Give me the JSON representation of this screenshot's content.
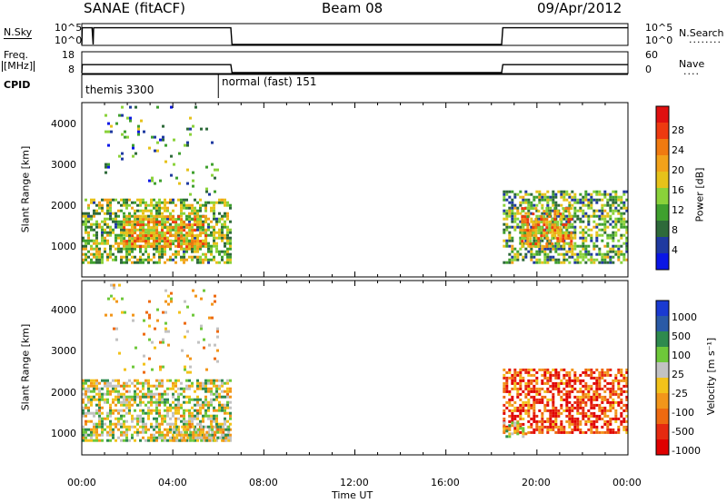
{
  "header": {
    "station": "SANAE (fitACF)",
    "beam": "Beam 08",
    "date": "09/Apr/2012"
  },
  "strip_labels": {
    "nsky": "N.Sky",
    "freq_line1": "Freq.",
    "freq_line2": "[MHz]",
    "cpid": "CPID",
    "nsearch": "N.Search",
    "nsearch_dots": "········",
    "nave": "Nave",
    "nave_dots": "····",
    "nsky_ticks": [
      "10^5",
      "10^0"
    ],
    "nsearch_ticks": [
      "10^5",
      "10^0"
    ],
    "freq_ticks": [
      "18",
      "8"
    ],
    "nave_ticks": [
      "60",
      "0"
    ]
  },
  "cpid": {
    "segments": [
      {
        "label": "themis 3300",
        "start_hour": 0.0
      },
      {
        "label": "normal (fast) 151",
        "start_hour": 6.0
      }
    ]
  },
  "axes": {
    "xlabel": "Time UT",
    "x_ticks": [
      "00:00",
      "04:00",
      "08:00",
      "12:00",
      "16:00",
      "20:00",
      "00:00"
    ],
    "ylabel": "Slant Range [km]",
    "y_ticks": [
      "4000",
      "3000",
      "2000",
      "1000"
    ]
  },
  "colorbars": {
    "power": {
      "label": "Power [dB]",
      "ticks": [
        "28",
        "24",
        "20",
        "16",
        "12",
        "8",
        "4"
      ],
      "colors": [
        "#0a16e6",
        "#1f3aa0",
        "#2e6a3a",
        "#3fa02e",
        "#8ad23a",
        "#e6c21a",
        "#f2a21a",
        "#f07a10",
        "#ee3a10",
        "#e01010"
      ]
    },
    "velocity": {
      "label": "Velocity [m s⁻¹]",
      "ticks": [
        "1000",
        "500",
        "100",
        "25",
        "-25",
        "-100",
        "-500",
        "-1000"
      ],
      "colors": [
        "#1a3ad2",
        "#2a5aa6",
        "#2e8a4e",
        "#6ec83a",
        "#c2c2c2",
        "#f2c21a",
        "#f2961a",
        "#ee6a10",
        "#e62a10",
        "#e00000"
      ]
    }
  },
  "chart_data": [
    {
      "type": "line",
      "title": "N.Sky / N.Search",
      "x_range_hours": [
        0,
        24
      ],
      "series": [
        {
          "name": "N.Sky",
          "scale": "log",
          "range": [
            1,
            100000
          ],
          "points": [
            [
              0.0,
              1
            ],
            [
              0.02,
              40000
            ],
            [
              0.45,
              40000
            ],
            [
              0.5,
              1
            ],
            [
              0.52,
              40000
            ],
            [
              6.55,
              40000
            ],
            [
              6.6,
              1
            ],
            [
              18.45,
              1
            ],
            [
              18.5,
              40000
            ],
            [
              23.98,
              40000
            ]
          ]
        },
        {
          "name": "N.Search",
          "scale": "log",
          "range": [
            1,
            100000
          ],
          "points": [
            [
              0.0,
              1
            ],
            [
              23.98,
              1
            ]
          ]
        }
      ]
    },
    {
      "type": "line",
      "title": "Freq. [MHz] / Nave",
      "x_range_hours": [
        0,
        24
      ],
      "series": [
        {
          "name": "Freq. [MHz]",
          "range": [
            8,
            18
          ],
          "points": [
            [
              0.0,
              8
            ],
            [
              0.02,
              12.2
            ],
            [
              6.55,
              12.2
            ],
            [
              6.6,
              8
            ],
            [
              18.45,
              8
            ],
            [
              18.5,
              12.2
            ],
            [
              23.98,
              12.2
            ]
          ]
        },
        {
          "name": "Nave",
          "range": [
            0,
            60
          ],
          "points": [
            [
              0.0,
              0
            ],
            [
              23.98,
              0
            ]
          ]
        }
      ]
    },
    {
      "type": "heatmap",
      "title": "Power [dB]",
      "x_range_hours": [
        0,
        24
      ],
      "y_range_km": [
        200,
        4500
      ],
      "value_range": [
        0,
        32
      ],
      "clusters": [
        {
          "t": [
            0.0,
            6.5
          ],
          "r": [
            500,
            2100
          ],
          "value": 14,
          "density": 0.6
        },
        {
          "t": [
            1.8,
            5.5
          ],
          "r": [
            900,
            1700
          ],
          "value": 20,
          "density": 0.7
        },
        {
          "t": [
            18.5,
            24.0
          ],
          "r": [
            500,
            2300
          ],
          "value": 12,
          "density": 0.55
        },
        {
          "t": [
            19.3,
            21.5
          ],
          "r": [
            900,
            1900
          ],
          "value": 20,
          "density": 0.6
        },
        {
          "t": [
            1.0,
            6.0
          ],
          "r": [
            2200,
            4400
          ],
          "value": 10,
          "density": 0.05
        }
      ]
    },
    {
      "type": "heatmap",
      "title": "Velocity [m s⁻¹]",
      "x_range_hours": [
        0,
        24
      ],
      "y_range_km": [
        200,
        4500
      ],
      "value_range": [
        -1000,
        1000
      ],
      "clusters": [
        {
          "t": [
            0.0,
            6.5
          ],
          "r": [
            500,
            2000
          ],
          "value": 80,
          "density": 0.6
        },
        {
          "t": [
            4.0,
            6.5
          ],
          "r": [
            500,
            900
          ],
          "value": 0,
          "density": 0.6
        },
        {
          "t": [
            18.5,
            24.0
          ],
          "r": [
            700,
            2300
          ],
          "value": -600,
          "density": 0.6
        },
        {
          "t": [
            18.5,
            19.5
          ],
          "r": [
            600,
            1000
          ],
          "value": 0,
          "density": 0.5
        },
        {
          "t": [
            1.0,
            6.0
          ],
          "r": [
            2200,
            4400
          ],
          "value": -100,
          "density": 0.05
        }
      ]
    }
  ]
}
